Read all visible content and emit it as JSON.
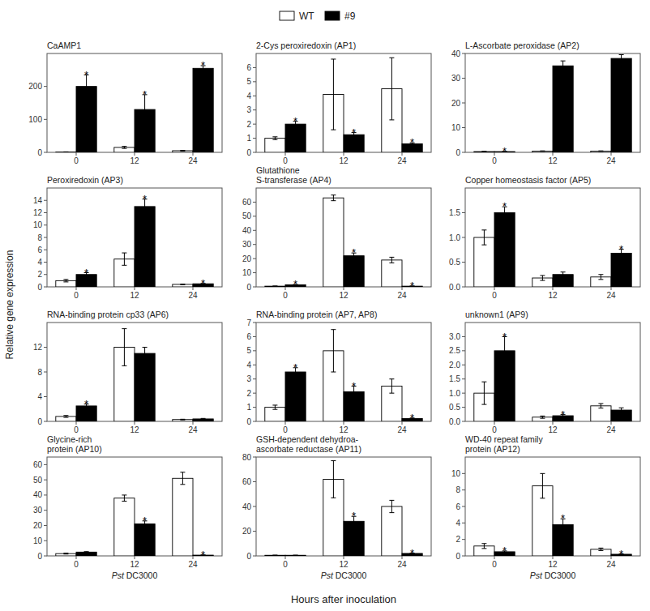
{
  "ylabel": "Relative gene expression",
  "xlabel": "Hours after inoculation",
  "chart_data": [
    {
      "type": "bar",
      "title": "CaAMP1",
      "categories": [
        "0",
        "12",
        "24"
      ],
      "ylim": [
        0,
        300
      ],
      "yticks": [
        0,
        100,
        200
      ],
      "series": [
        {
          "name": "WT",
          "color": "white",
          "values": [
            1,
            15,
            5
          ],
          "errors": [
            0.5,
            3,
            1
          ]
        },
        {
          "name": "#9",
          "color": "black",
          "values": [
            200,
            130,
            255
          ],
          "errors": [
            35,
            45,
            8
          ],
          "annotations": [
            "*",
            "*",
            "*"
          ]
        }
      ]
    },
    {
      "type": "bar",
      "title": "2-Cys peroxiredoxin (AP1)",
      "categories": [
        "0",
        "12",
        "24"
      ],
      "ylim": [
        0,
        7
      ],
      "yticks": [
        0,
        1,
        2,
        3,
        4,
        5,
        6
      ],
      "series": [
        {
          "name": "WT",
          "color": "white",
          "values": [
            1.0,
            4.1,
            4.5
          ],
          "errors": [
            0.1,
            2.5,
            2.2
          ]
        },
        {
          "name": "#9",
          "color": "black",
          "values": [
            2.0,
            1.25,
            0.6
          ],
          "errors": [
            0.2,
            0.15,
            0.08
          ],
          "annotations": [
            "*",
            "*",
            "*"
          ]
        }
      ]
    },
    {
      "type": "bar",
      "title": "L-Ascorbate peroxidase (AP2)",
      "categories": [
        "0",
        "12",
        "24"
      ],
      "ylim": [
        0,
        40
      ],
      "yticks": [
        0,
        10,
        20,
        30,
        40
      ],
      "series": [
        {
          "name": "WT",
          "color": "white",
          "values": [
            0.3,
            0.5,
            0.5
          ],
          "errors": [
            0.1,
            0.1,
            0.1
          ]
        },
        {
          "name": "#9",
          "color": "black",
          "values": [
            0.3,
            35,
            38
          ],
          "errors": [
            0.05,
            2.0,
            1.5
          ],
          "annotations": [
            "*",
            null,
            null
          ]
        }
      ]
    },
    {
      "type": "bar",
      "title": "Peroxiredoxin (AP3)",
      "categories": [
        "0",
        "12",
        "24"
      ],
      "ylim": [
        0,
        16
      ],
      "yticks": [
        0,
        2,
        4,
        6,
        8,
        10,
        12,
        14
      ],
      "series": [
        {
          "name": "WT",
          "color": "white",
          "values": [
            1.0,
            4.5,
            0.4
          ],
          "errors": [
            0.2,
            1.0,
            0.05
          ]
        },
        {
          "name": "#9",
          "color": "black",
          "values": [
            2.0,
            13.0,
            0.5
          ],
          "errors": [
            0.3,
            1.2,
            0.05
          ],
          "annotations": [
            "*",
            "*",
            "*"
          ]
        }
      ]
    },
    {
      "type": "bar",
      "title": "Glutathione\nS-transferase (AP4)",
      "categories": [
        "0",
        "12",
        "24"
      ],
      "ylim": [
        0,
        70
      ],
      "yticks": [
        0,
        10,
        20,
        30,
        40,
        50,
        60
      ],
      "series": [
        {
          "name": "WT",
          "color": "white",
          "values": [
            0.5,
            63,
            19
          ],
          "errors": [
            0.1,
            2.0,
            2.0
          ]
        },
        {
          "name": "#9",
          "color": "black",
          "values": [
            1.5,
            22,
            0.5
          ],
          "errors": [
            0.2,
            2.0,
            0.1
          ],
          "annotations": [
            "*",
            "*",
            "*"
          ]
        }
      ]
    },
    {
      "type": "bar",
      "title": "Copper homeostasis factor (AP5)",
      "categories": [
        "0",
        "12",
        "24"
      ],
      "ylim": [
        0,
        2.0
      ],
      "yticks": [
        {
          "value": 0,
          "label": "0.0"
        },
        0.5,
        {
          "value": 1.0,
          "label": "1.0"
        },
        1.5
      ],
      "series": [
        {
          "name": "WT",
          "color": "white",
          "values": [
            1.0,
            0.18,
            0.2
          ],
          "errors": [
            0.15,
            0.05,
            0.05
          ]
        },
        {
          "name": "#9",
          "color": "black",
          "values": [
            1.5,
            0.25,
            0.68
          ],
          "errors": [
            0.12,
            0.05,
            0.08
          ],
          "annotations": [
            "*",
            null,
            "*"
          ]
        }
      ]
    },
    {
      "type": "bar",
      "title": "RNA-binding protein cp33 (AP6)",
      "categories": [
        "0",
        "12",
        "24"
      ],
      "ylim": [
        0,
        16
      ],
      "yticks": [
        0,
        4,
        8,
        12
      ],
      "series": [
        {
          "name": "WT",
          "color": "white",
          "values": [
            0.8,
            12,
            0.3
          ],
          "errors": [
            0.15,
            3.0,
            0.05
          ]
        },
        {
          "name": "#9",
          "color": "black",
          "values": [
            2.5,
            11,
            0.4
          ],
          "errors": [
            0.3,
            1.0,
            0.08
          ],
          "annotations": [
            "*",
            null,
            null
          ]
        }
      ]
    },
    {
      "type": "bar",
      "title": "RNA-binding protein (AP7, AP8)",
      "categories": [
        "0",
        "12",
        "24"
      ],
      "ylim": [
        0,
        7
      ],
      "yticks": [
        0,
        1,
        2,
        3,
        4,
        5,
        6,
        7
      ],
      "series": [
        {
          "name": "WT",
          "color": "white",
          "values": [
            1.0,
            5.0,
            2.5
          ],
          "errors": [
            0.15,
            1.5,
            0.5
          ]
        },
        {
          "name": "#9",
          "color": "black",
          "values": [
            3.5,
            2.1,
            0.2
          ],
          "errors": [
            0.3,
            0.4,
            0.04
          ],
          "annotations": [
            "*",
            "*",
            "*"
          ]
        }
      ]
    },
    {
      "type": "bar",
      "title": "unknown1 (AP9)",
      "categories": [
        "0",
        "12",
        "24"
      ],
      "ylim": [
        0,
        3.5
      ],
      "yticks": [
        {
          "value": 0,
          "label": "0.0"
        },
        0.5,
        {
          "value": 1.0,
          "label": "1.0"
        },
        1.5,
        {
          "value": 2.0,
          "label": "2.0"
        },
        2.5,
        {
          "value": 3.0,
          "label": "3.0"
        }
      ],
      "series": [
        {
          "name": "WT",
          "color": "white",
          "values": [
            1.0,
            0.15,
            0.55
          ],
          "errors": [
            0.4,
            0.04,
            0.08
          ]
        },
        {
          "name": "#9",
          "color": "black",
          "values": [
            2.5,
            0.2,
            0.4
          ],
          "errors": [
            0.5,
            0.04,
            0.08
          ],
          "annotations": [
            "*",
            "*",
            null
          ]
        }
      ]
    },
    {
      "type": "bar",
      "title": "Glycine-rich\nprotein (AP10)",
      "categories": [
        "0",
        "12",
        "24"
      ],
      "xlabel": "Pst DC3000",
      "ylim": [
        0,
        65
      ],
      "yticks": [
        0,
        10,
        20,
        30,
        40,
        50,
        60
      ],
      "series": [
        {
          "name": "WT",
          "color": "white",
          "values": [
            1.5,
            38,
            51
          ],
          "errors": [
            0.3,
            2.0,
            4.0
          ]
        },
        {
          "name": "#9",
          "color": "black",
          "values": [
            2.5,
            21,
            0.5
          ],
          "errors": [
            0.3,
            2.0,
            0.1
          ],
          "annotations": [
            null,
            "*",
            "*"
          ]
        }
      ]
    },
    {
      "type": "bar",
      "title": "GSH-dependent dehydroa-\nascorbate reductase (AP11)",
      "categories": [
        "0",
        "12",
        "24"
      ],
      "xlabel": "Pst DC3000",
      "ylim": [
        0,
        80
      ],
      "yticks": [
        0,
        20,
        40,
        60,
        80
      ],
      "series": [
        {
          "name": "WT",
          "color": "white",
          "values": [
            0.5,
            62,
            40
          ],
          "errors": [
            0.1,
            15,
            5.0
          ]
        },
        {
          "name": "#9",
          "color": "black",
          "values": [
            0.5,
            28,
            2.0
          ],
          "errors": [
            0.05,
            4.0,
            0.3
          ],
          "annotations": [
            null,
            "*",
            "*"
          ]
        }
      ]
    },
    {
      "type": "bar",
      "title": "WD-40 repeat family\nprotein (AP12)",
      "categories": [
        "0",
        "12",
        "24"
      ],
      "xlabel": "Pst DC3000",
      "ylim": [
        0,
        12
      ],
      "yticks": [
        0,
        2,
        4,
        6,
        8,
        10
      ],
      "series": [
        {
          "name": "WT",
          "color": "white",
          "values": [
            1.2,
            8.5,
            0.8
          ],
          "errors": [
            0.3,
            1.5,
            0.15
          ]
        },
        {
          "name": "#9",
          "color": "black",
          "values": [
            0.5,
            3.8,
            0.2
          ],
          "errors": [
            0.1,
            0.7,
            0.04
          ],
          "annotations": [
            "*",
            "*",
            "*"
          ]
        }
      ]
    }
  ]
}
